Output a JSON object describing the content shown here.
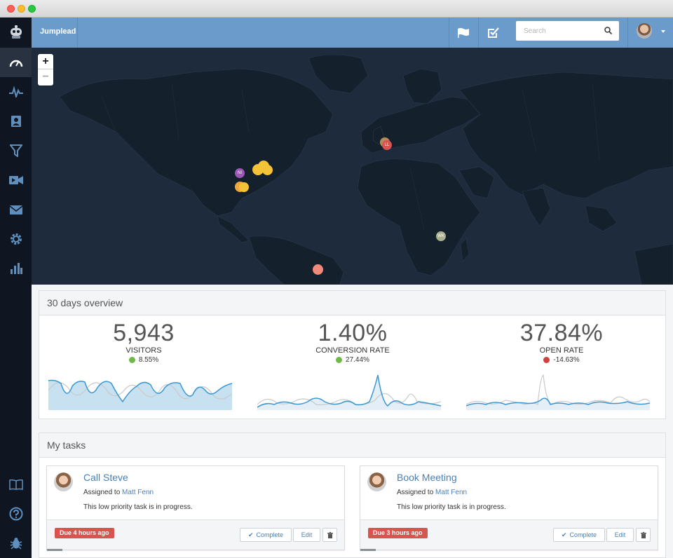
{
  "app": {
    "brand": "Jumplead"
  },
  "sidebar": {
    "items": [
      {
        "icon": "robot-logo-icon"
      },
      {
        "icon": "dashboard-gauge-icon",
        "active": true
      },
      {
        "icon": "activity-pulse-icon"
      },
      {
        "icon": "contacts-icon"
      },
      {
        "icon": "funnel-icon"
      },
      {
        "icon": "video-icon"
      },
      {
        "icon": "envelope-icon"
      },
      {
        "icon": "settings-gear-icon"
      },
      {
        "icon": "bar-chart-icon"
      },
      {
        "icon": "book-icon"
      },
      {
        "icon": "help-icon"
      },
      {
        "icon": "bug-icon"
      }
    ]
  },
  "topbar": {
    "search": {
      "placeholder": "Search"
    },
    "icons": [
      "flag-icon",
      "check-square-icon",
      "search-icon",
      "user-avatar",
      "caret-down-icon"
    ]
  },
  "map": {
    "zoom_in": "+",
    "zoom_out": "−",
    "markers": [
      {
        "label": "LL",
        "color": "#d9534f"
      },
      {
        "label": "NI",
        "color": "#9b59b6"
      },
      {
        "label": "WK",
        "color": "#a9b08b"
      }
    ]
  },
  "overview": {
    "title": "30 days overview",
    "metrics": [
      {
        "value": "5,943",
        "label": "VISITORS",
        "change": "8.55%",
        "direction": "up"
      },
      {
        "value": "1.40%",
        "label": "CONVERSION RATE",
        "change": "27.44%",
        "direction": "up"
      },
      {
        "value": "37.84%",
        "label": "OPEN RATE",
        "change": "-14.63%",
        "direction": "down"
      }
    ],
    "colors": {
      "up": "#6dbb47",
      "down": "#d43f3a",
      "line": "#3a97d4",
      "fill": "#c8e1f0",
      "compare": "#c9c9c9"
    }
  },
  "tasks": {
    "title": "My tasks",
    "items": [
      {
        "title": "Call Steve",
        "assigned_prefix": "Assigned to",
        "assignee": "Matt Fenn",
        "description": "This low priority task is in progress.",
        "due": "Due 4 hours ago",
        "complete_label": "Complete",
        "edit_label": "Edit"
      },
      {
        "title": "Book Meeting",
        "assigned_prefix": "Assigned to",
        "assignee": "Matt Fenn",
        "description": "This low priority task is in progress.",
        "due": "Due 3 hours ago",
        "complete_label": "Complete",
        "edit_label": "Edit"
      }
    ]
  }
}
